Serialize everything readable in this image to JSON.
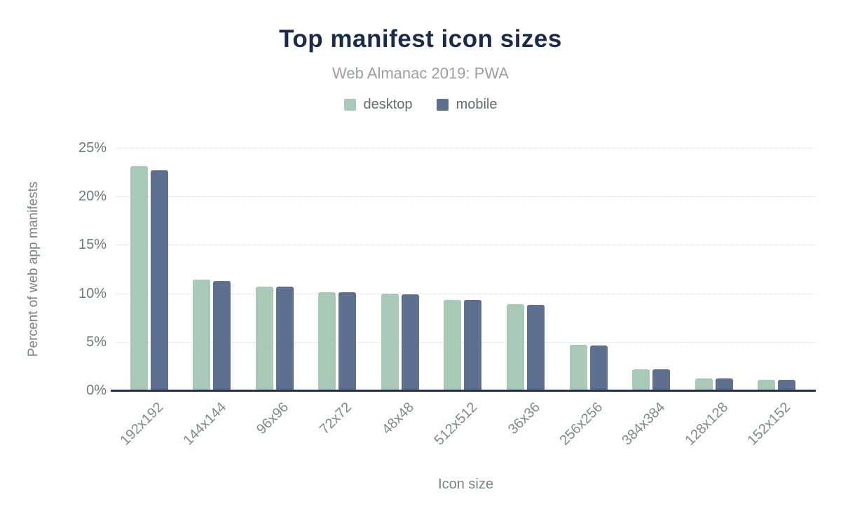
{
  "title": "Top manifest icon sizes",
  "subtitle": "Web Almanac 2019: PWA",
  "axes": {
    "x_title": "Icon size",
    "y_title": "Percent of web app manifests"
  },
  "colors": {
    "desktop": "#a9c9b8",
    "mobile": "#5e7090",
    "title_navy": "#1a2b49",
    "axis_line": "#22304f",
    "gridline": "#e0e0e0",
    "tick_text": "#71767e",
    "background": "#ffffff"
  },
  "chart_data": {
    "type": "bar",
    "title": "Top manifest icon sizes",
    "subtitle": "Web Almanac 2019: PWA",
    "xlabel": "Icon size",
    "ylabel": "Percent of web app manifests",
    "categories": [
      "192x192",
      "144x144",
      "96x96",
      "72x72",
      "48x48",
      "512x512",
      "36x36",
      "256x256",
      "384x384",
      "128x128",
      "152x152"
    ],
    "series": [
      {
        "name": "desktop",
        "color": "#a9c9b8",
        "values": [
          23.1,
          11.4,
          10.7,
          10.1,
          10.0,
          9.3,
          8.9,
          4.7,
          2.2,
          1.2,
          1.05
        ]
      },
      {
        "name": "mobile",
        "color": "#5e7090",
        "values": [
          22.7,
          11.3,
          10.7,
          10.15,
          9.9,
          9.3,
          8.8,
          4.6,
          2.15,
          1.2,
          1.1
        ]
      }
    ],
    "ylim": [
      0,
      25
    ],
    "yticks": [
      0,
      5,
      10,
      15,
      20,
      25
    ],
    "ytick_labels": [
      "0%",
      "5%",
      "10%",
      "15%",
      "20%",
      "25%"
    ],
    "grid": true,
    "grid_style": "dotted",
    "legend_position": "top",
    "bar_corner_radius": 3
  }
}
